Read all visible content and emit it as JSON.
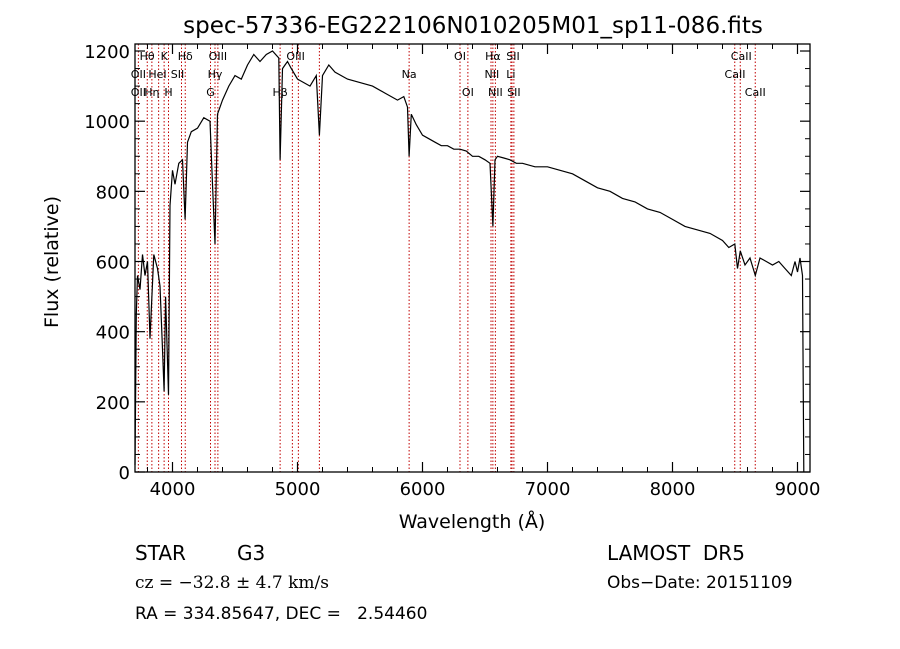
{
  "chart_data": {
    "type": "line",
    "title": "spec-57336-EG222106N010205M01_sp11-086.fits",
    "xlabel": "Wavelength (Å)",
    "ylabel": "Flux (relative)",
    "xlim": [
      3700,
      9100
    ],
    "ylim": [
      0,
      1220
    ],
    "x_ticks": [
      4000,
      5000,
      6000,
      7000,
      8000,
      9000
    ],
    "y_ticks": [
      0,
      200,
      400,
      600,
      800,
      1000,
      1200
    ],
    "grid": false,
    "series": [
      {
        "x": [
          3700,
          3710,
          3720,
          3740,
          3760,
          3780,
          3800,
          3820,
          3850,
          3880,
          3900,
          3920,
          3933,
          3945,
          3968,
          3980,
          4000,
          4020,
          4050,
          4080,
          4101,
          4120,
          4150,
          4200,
          4250,
          4300,
          4320,
          4340,
          4360,
          4400,
          4450,
          4500,
          4550,
          4600,
          4650,
          4700,
          4750,
          4800,
          4850,
          4861,
          4880,
          4900,
          4920,
          4950,
          5000,
          5050,
          5100,
          5150,
          5175,
          5200,
          5250,
          5300,
          5400,
          5500,
          5600,
          5700,
          5800,
          5850,
          5880,
          5893,
          5910,
          5950,
          6000,
          6050,
          6100,
          6150,
          6200,
          6250,
          6300,
          6350,
          6400,
          6450,
          6500,
          6540,
          6563,
          6580,
          6600,
          6650,
          6700,
          6750,
          6800,
          6900,
          7000,
          7100,
          7200,
          7300,
          7400,
          7500,
          7600,
          7700,
          7800,
          7900,
          8000,
          8100,
          8200,
          8300,
          8400,
          8450,
          8498,
          8520,
          8542,
          8580,
          8620,
          8662,
          8700,
          8750,
          8800,
          8850,
          8900,
          8950,
          8980,
          9000,
          9020,
          9040,
          9050
        ],
        "y": [
          20,
          450,
          560,
          520,
          620,
          560,
          600,
          380,
          620,
          580,
          530,
          350,
          230,
          500,
          220,
          760,
          860,
          820,
          880,
          890,
          720,
          940,
          970,
          980,
          1010,
          1000,
          820,
          650,
          1020,
          1060,
          1100,
          1130,
          1120,
          1160,
          1190,
          1170,
          1190,
          1200,
          1180,
          890,
          1150,
          1160,
          1170,
          1150,
          1120,
          1110,
          1100,
          1130,
          960,
          1130,
          1160,
          1140,
          1120,
          1110,
          1100,
          1080,
          1060,
          1070,
          1040,
          900,
          1020,
          990,
          960,
          950,
          940,
          930,
          930,
          920,
          920,
          915,
          900,
          900,
          890,
          880,
          700,
          890,
          900,
          895,
          890,
          880,
          880,
          870,
          870,
          860,
          850,
          830,
          810,
          800,
          780,
          770,
          750,
          740,
          720,
          700,
          690,
          680,
          660,
          640,
          650,
          580,
          630,
          590,
          610,
          560,
          610,
          600,
          590,
          600,
          580,
          560,
          600,
          570,
          610,
          560,
          0
        ]
      }
    ],
    "line_markers": [
      {
        "wavelength": 3727,
        "label": "OII"
      },
      {
        "wavelength": 3798,
        "label": "Hθ"
      },
      {
        "wavelength": 3835,
        "label": "Hη"
      },
      {
        "wavelength": 3889,
        "label": "HeI"
      },
      {
        "wavelength": 3933,
        "label": "K"
      },
      {
        "wavelength": 3968,
        "label": "H"
      },
      {
        "wavelength": 4072,
        "label": "SII"
      },
      {
        "wavelength": 4102,
        "label": "Hδ"
      },
      {
        "wavelength": 4304,
        "label": "G"
      },
      {
        "wavelength": 4340,
        "label": "Hγ"
      },
      {
        "wavelength": 4363,
        "label": "OIII"
      },
      {
        "wavelength": 4861,
        "label": "Hβ"
      },
      {
        "wavelength": 4959,
        "label": "OIII"
      },
      {
        "wavelength": 5007,
        "label": "OIII"
      },
      {
        "wavelength": 5175,
        "label": "Mg"
      },
      {
        "wavelength": 5893,
        "label": "Na"
      },
      {
        "wavelength": 6300,
        "label": "OI"
      },
      {
        "wavelength": 6363,
        "label": "OI"
      },
      {
        "wavelength": 6548,
        "label": "NII"
      },
      {
        "wavelength": 6563,
        "label": "Hα"
      },
      {
        "wavelength": 6583,
        "label": "NII"
      },
      {
        "wavelength": 6707,
        "label": "Li"
      },
      {
        "wavelength": 6716,
        "label": "SII"
      },
      {
        "wavelength": 6731,
        "label": "SII"
      },
      {
        "wavelength": 8498,
        "label": "CaII"
      },
      {
        "wavelength": 8542,
        "label": "CaII"
      },
      {
        "wavelength": 8662,
        "label": "CaII"
      }
    ],
    "line_labels": [
      {
        "text": "Hθ",
        "wavelength": 3797,
        "row": 0
      },
      {
        "text": "K",
        "wavelength": 3934,
        "row": 0
      },
      {
        "text": "Hδ",
        "wavelength": 4102,
        "row": 0
      },
      {
        "text": "OIII",
        "wavelength": 4363,
        "row": 0
      },
      {
        "text": "OIII",
        "wavelength": 4985,
        "row": 0
      },
      {
        "text": "OI",
        "wavelength": 6300,
        "row": 0
      },
      {
        "text": "Hα",
        "wavelength": 6563,
        "row": 0
      },
      {
        "text": "SII",
        "wavelength": 6724,
        "row": 0
      },
      {
        "text": "CaII",
        "wavelength": 8550,
        "row": 0
      },
      {
        "text": "OII",
        "wavelength": 3727,
        "row": 1
      },
      {
        "text": "HeI",
        "wavelength": 3880,
        "row": 1
      },
      {
        "text": "SII",
        "wavelength": 4040,
        "row": 1
      },
      {
        "text": "Hγ",
        "wavelength": 4340,
        "row": 1
      },
      {
        "text": "Na",
        "wavelength": 5893,
        "row": 1
      },
      {
        "text": "NII",
        "wavelength": 6555,
        "row": 1
      },
      {
        "text": "Li",
        "wavelength": 6707,
        "row": 1
      },
      {
        "text": "CaII",
        "wavelength": 8500,
        "row": 1
      },
      {
        "text": "OII",
        "wavelength": 3727,
        "row": 2
      },
      {
        "text": "Hη",
        "wavelength": 3835,
        "row": 2
      },
      {
        "text": "H",
        "wavelength": 3968,
        "row": 2
      },
      {
        "text": "G",
        "wavelength": 4304,
        "row": 2
      },
      {
        "text": "Hβ",
        "wavelength": 4861,
        "row": 2
      },
      {
        "text": "OI",
        "wavelength": 6363,
        "row": 2
      },
      {
        "text": "NII",
        "wavelength": 6583,
        "row": 2
      },
      {
        "text": "SII",
        "wavelength": 6731,
        "row": 2
      },
      {
        "text": "CaII",
        "wavelength": 8662,
        "row": 2
      }
    ],
    "marker_color": "#c00000",
    "line_color": "#000000"
  },
  "info": {
    "class_label": "STAR",
    "subclass": "G3",
    "survey": "LAMOST  DR5",
    "cz": "cz = −32.8 ± 4.7 km/s",
    "obs_date": "Obs−Date: 20151109",
    "coords": "RA = 334.85647, DEC =   2.54460"
  }
}
